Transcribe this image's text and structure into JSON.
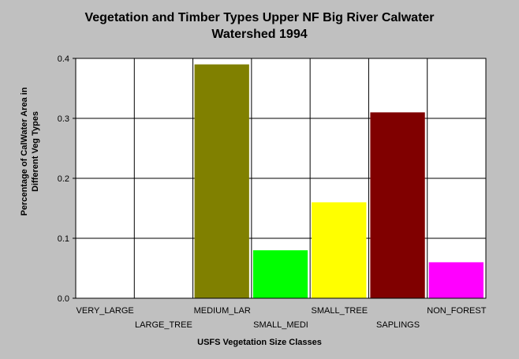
{
  "chart_data": {
    "type": "bar",
    "title_line1": "Vegetation and Timber Types Upper NF Big River Calwater",
    "title_line2": "Watershed 1994",
    "xlabel": "USFS Vegetation Size Classes",
    "ylabel_line1": "Percentage of CalWater Area in",
    "ylabel_line2": "Different Veg Types",
    "categories": [
      "VERY_LARGE",
      "LARGE_TREE",
      "MEDIUM_LAR",
      "SMALL_MEDI",
      "SMALL_TREE",
      "SAPLINGS",
      "NON_FOREST"
    ],
    "values": [
      0,
      0,
      0.39,
      0.08,
      0.16,
      0.31,
      0.06
    ],
    "colors": [
      "#808000",
      "#808000",
      "#808000",
      "#00ff00",
      "#ffff00",
      "#800000",
      "#ff00ff"
    ],
    "ylim": [
      0,
      0.4
    ],
    "yticks": [
      "0.0",
      "0.1",
      "0.2",
      "0.3",
      "0.4"
    ],
    "grid": true,
    "legend": "none"
  }
}
